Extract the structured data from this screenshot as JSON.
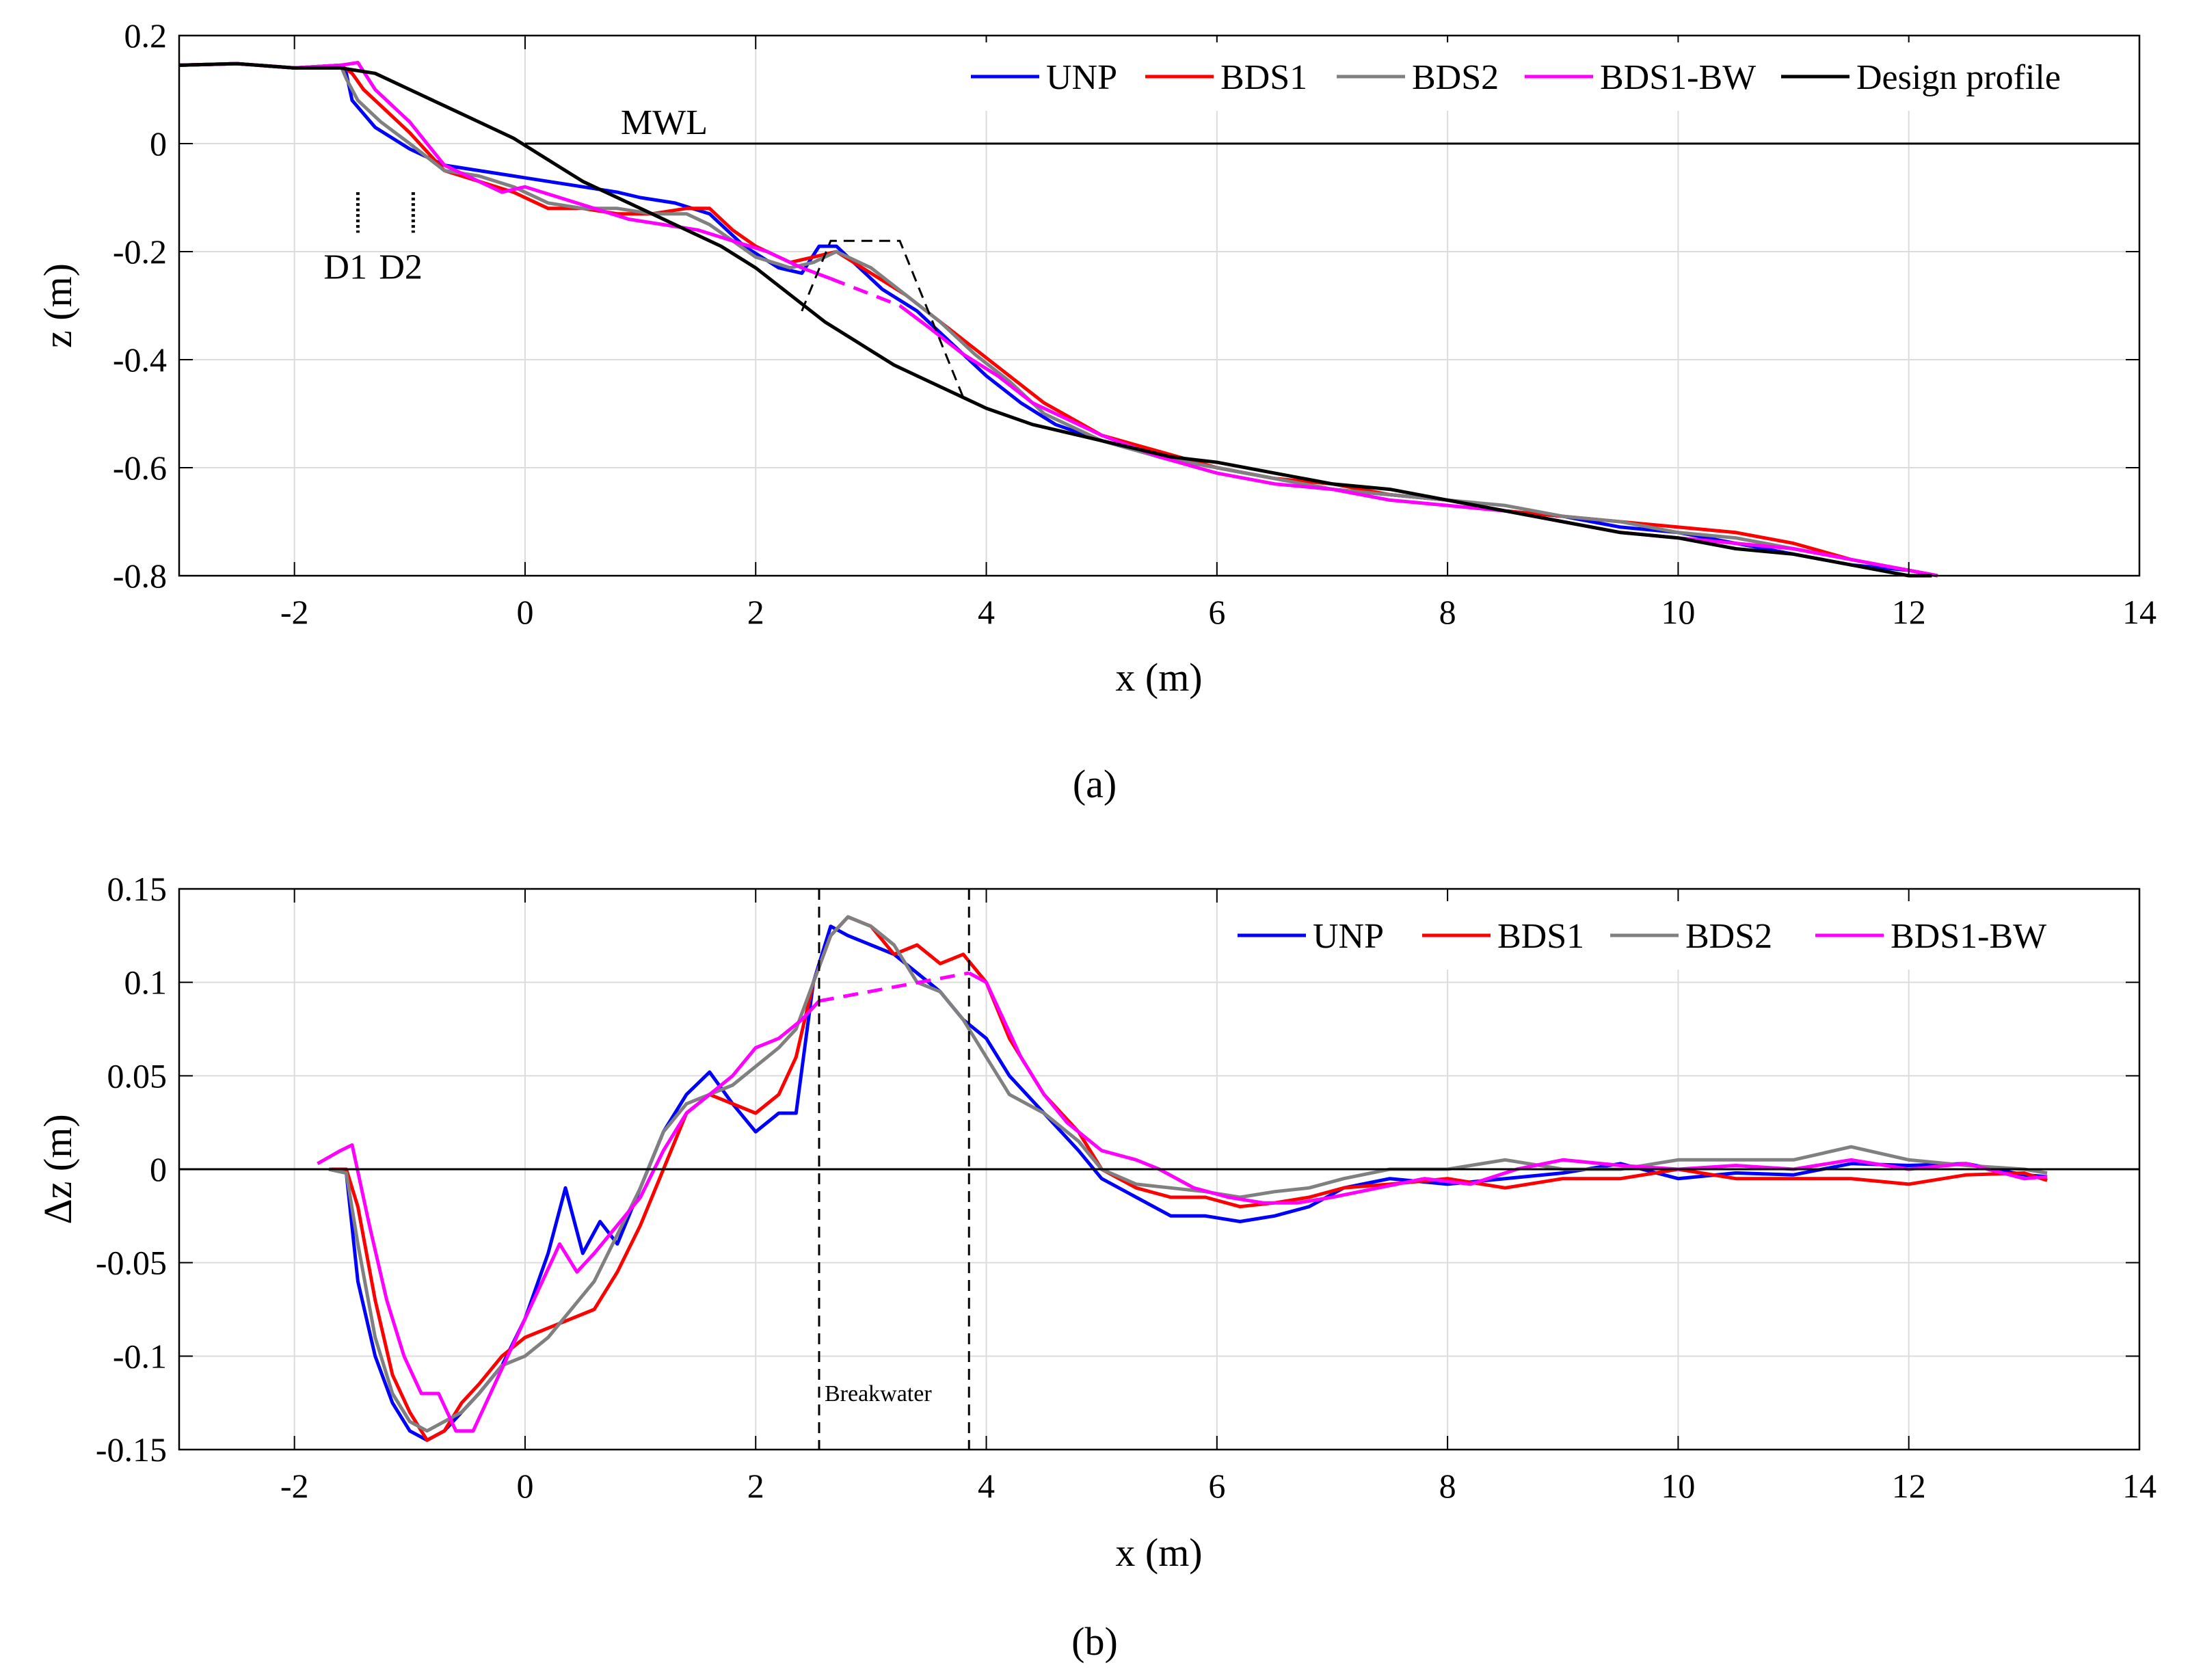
{
  "chart_data": [
    {
      "type": "line",
      "panel": "a",
      "caption": "(a)",
      "xlabel": "x (m)",
      "ylabel": "z (m)",
      "xlim": [
        -3,
        14
      ],
      "ylim": [
        -0.8,
        0.2
      ],
      "xticks": [
        -2,
        0,
        2,
        4,
        6,
        8,
        10,
        12,
        14
      ],
      "yticks": [
        0.2,
        0,
        -0.2,
        -0.4,
        -0.6,
        -0.8
      ],
      "xtick_labels": [
        "-2",
        "0",
        "2",
        "4",
        "6",
        "8",
        "10",
        "12",
        "14"
      ],
      "ytick_labels": [
        "0.2",
        "0",
        "-0.2",
        "-0.4",
        "-0.6",
        "-0.8"
      ],
      "grid": true,
      "legend_position": "top-right",
      "annotations": {
        "mwl": "MWL",
        "d1": "D1",
        "d2": "D2"
      },
      "mwl_level": 0,
      "gauges": [
        {
          "name": "D1",
          "x": -1.45
        },
        {
          "name": "D2",
          "x": -0.97
        }
      ],
      "breakwater_outline": {
        "x": [
          2.4,
          2.65,
          3.25,
          3.8
        ],
        "y": [
          -0.31,
          -0.18,
          -0.18,
          -0.47
        ]
      },
      "series": [
        {
          "name": "UNP",
          "color": "#0000ff",
          "x": [
            -3,
            -2.5,
            -2,
            -1.6,
            -1.55,
            -1.5,
            -1.3,
            -1.0,
            -0.7,
            -0.4,
            -0.1,
            0.2,
            0.5,
            0.8,
            1.0,
            1.3,
            1.6,
            1.9,
            2.2,
            2.4,
            2.55,
            2.7,
            2.9,
            3.1,
            3.4,
            3.7,
            4.0,
            4.3,
            4.6,
            5.0,
            5.5,
            6.0,
            6.5,
            7.0,
            7.5,
            8.0,
            8.5,
            9.0,
            9.5,
            10.0,
            10.5,
            11.0,
            11.5,
            12.0,
            12.25
          ],
          "y": [
            0.145,
            0.148,
            0.14,
            0.145,
            0.13,
            0.08,
            0.03,
            -0.01,
            -0.04,
            -0.05,
            -0.06,
            -0.07,
            -0.08,
            -0.09,
            -0.1,
            -0.11,
            -0.13,
            -0.19,
            -0.23,
            -0.24,
            -0.19,
            -0.19,
            -0.23,
            -0.27,
            -0.31,
            -0.37,
            -0.43,
            -0.48,
            -0.52,
            -0.55,
            -0.58,
            -0.6,
            -0.62,
            -0.64,
            -0.65,
            -0.66,
            -0.68,
            -0.69,
            -0.71,
            -0.72,
            -0.74,
            -0.76,
            -0.78,
            -0.79,
            -0.8
          ]
        },
        {
          "name": "BDS1",
          "color": "#ff0000",
          "x": [
            -3,
            -2.5,
            -2,
            -1.6,
            -1.5,
            -1.4,
            -1.2,
            -1.0,
            -0.7,
            -0.4,
            -0.1,
            0.2,
            0.5,
            0.8,
            1.1,
            1.4,
            1.6,
            1.8,
            2.0,
            2.3,
            2.5,
            2.7,
            3.0,
            3.3,
            3.6,
            3.9,
            4.2,
            4.5,
            5.0,
            5.5,
            6.0,
            6.5,
            7.0,
            7.5,
            8.0,
            8.5,
            9.0,
            9.5,
            10.0,
            10.5,
            11.0,
            11.5,
            12.0,
            12.25
          ],
          "y": [
            0.145,
            0.148,
            0.14,
            0.145,
            0.13,
            0.1,
            0.06,
            0.02,
            -0.05,
            -0.07,
            -0.09,
            -0.12,
            -0.12,
            -0.13,
            -0.13,
            -0.12,
            -0.12,
            -0.16,
            -0.19,
            -0.22,
            -0.21,
            -0.2,
            -0.24,
            -0.28,
            -0.33,
            -0.38,
            -0.43,
            -0.48,
            -0.54,
            -0.57,
            -0.6,
            -0.62,
            -0.63,
            -0.65,
            -0.66,
            -0.68,
            -0.69,
            -0.7,
            -0.71,
            -0.72,
            -0.74,
            -0.77,
            -0.79,
            -0.8
          ]
        },
        {
          "name": "BDS2",
          "color": "#808080",
          "x": [
            -3,
            -2.5,
            -2,
            -1.6,
            -1.55,
            -1.45,
            -1.25,
            -1.0,
            -0.7,
            -0.4,
            -0.1,
            0.2,
            0.5,
            0.8,
            1.1,
            1.4,
            1.6,
            1.8,
            2.0,
            2.3,
            2.5,
            2.7,
            3.0,
            3.3,
            3.6,
            3.9,
            4.2,
            4.5,
            5.0,
            5.5,
            6.0,
            6.5,
            7.0,
            7.5,
            8.0,
            8.5,
            9.0,
            9.5,
            10.0,
            10.5,
            11.0,
            11.5,
            12.0,
            12.25
          ],
          "y": [
            0.145,
            0.148,
            0.14,
            0.145,
            0.12,
            0.08,
            0.04,
            0.0,
            -0.05,
            -0.06,
            -0.08,
            -0.11,
            -0.12,
            -0.12,
            -0.13,
            -0.13,
            -0.15,
            -0.18,
            -0.21,
            -0.23,
            -0.22,
            -0.2,
            -0.23,
            -0.28,
            -0.33,
            -0.39,
            -0.44,
            -0.5,
            -0.55,
            -0.58,
            -0.6,
            -0.62,
            -0.64,
            -0.65,
            -0.66,
            -0.67,
            -0.69,
            -0.7,
            -0.72,
            -0.73,
            -0.75,
            -0.77,
            -0.79,
            -0.8
          ]
        },
        {
          "name": "BDS1-BW",
          "color": "#ff00ff",
          "x": [
            -3,
            -2.5,
            -2,
            -1.6,
            -1.45,
            -1.3,
            -1.0,
            -0.7,
            -0.4,
            -0.2,
            0.0,
            0.3,
            0.6,
            0.9,
            1.2,
            1.5,
            1.8,
            2.1,
            2.4,
            2.65,
            3.25,
            3.5,
            3.8,
            4.1,
            4.4,
            4.7,
            5.0,
            5.5,
            6.0,
            6.5,
            7.0,
            7.5,
            8.0,
            8.5,
            9.0,
            9.5,
            10.0,
            10.5,
            11.0,
            11.5,
            12.0,
            12.25
          ],
          "y": [
            0.145,
            0.148,
            0.14,
            0.145,
            0.15,
            0.1,
            0.04,
            -0.04,
            -0.07,
            -0.09,
            -0.08,
            -0.1,
            -0.12,
            -0.14,
            -0.15,
            -0.16,
            -0.18,
            -0.2,
            -0.23,
            -0.25,
            -0.3,
            -0.34,
            -0.39,
            -0.43,
            -0.48,
            -0.51,
            -0.54,
            -0.58,
            -0.61,
            -0.63,
            -0.64,
            -0.66,
            -0.67,
            -0.68,
            -0.7,
            -0.72,
            -0.73,
            -0.74,
            -0.75,
            -0.77,
            -0.79,
            -0.8
          ],
          "dashed_from_x": 2.65,
          "dashed_to_x": 3.25
        },
        {
          "name": "Design profile",
          "color": "#000000",
          "x": [
            -3,
            -2.5,
            -2.0,
            -1.6,
            -1.3,
            -1.0,
            -0.7,
            -0.4,
            -0.1,
            0.2,
            0.5,
            0.8,
            1.1,
            1.4,
            1.7,
            2.0,
            2.3,
            2.6,
            2.9,
            3.2,
            3.5,
            3.8,
            4.0,
            4.4,
            4.8,
            5.2,
            5.6,
            6.0,
            6.5,
            7.0,
            7.5,
            8.0,
            8.5,
            9.0,
            9.5,
            10.0,
            10.5,
            11.0,
            11.5,
            12.0,
            12.2
          ],
          "y": [
            0.145,
            0.148,
            0.14,
            0.14,
            0.13,
            0.1,
            0.07,
            0.04,
            0.01,
            -0.03,
            -0.07,
            -0.1,
            -0.13,
            -0.16,
            -0.19,
            -0.23,
            -0.28,
            -0.33,
            -0.37,
            -0.41,
            -0.44,
            -0.47,
            -0.49,
            -0.52,
            -0.54,
            -0.56,
            -0.58,
            -0.59,
            -0.61,
            -0.63,
            -0.64,
            -0.66,
            -0.68,
            -0.7,
            -0.72,
            -0.73,
            -0.75,
            -0.76,
            -0.78,
            -0.8,
            -0.8
          ]
        }
      ]
    },
    {
      "type": "line",
      "panel": "b",
      "caption": "(b)",
      "xlabel": "x (m)",
      "ylabel": "Δz (m)",
      "xlim": [
        -3,
        14
      ],
      "ylim": [
        -0.15,
        0.15
      ],
      "xticks": [
        -2,
        0,
        2,
        4,
        6,
        8,
        10,
        12,
        14
      ],
      "yticks": [
        0.15,
        0.1,
        0.05,
        0,
        -0.05,
        -0.1,
        -0.15
      ],
      "xtick_labels": [
        "-2",
        "0",
        "2",
        "4",
        "6",
        "8",
        "10",
        "12",
        "14"
      ],
      "ytick_labels": [
        "0.15",
        "0.1",
        "0.05",
        "0",
        "-0.05",
        "-0.1",
        "-0.15"
      ],
      "grid": true,
      "legend_position": "top-right",
      "annotations": {
        "breakwater": "Breakwater"
      },
      "breakwater_bounds": [
        2.55,
        3.85
      ],
      "series": [
        {
          "name": "UNP",
          "color": "#0000ff",
          "x": [
            -1.7,
            -1.55,
            -1.45,
            -1.3,
            -1.15,
            -1.0,
            -0.85,
            -0.7,
            -0.55,
            -0.4,
            -0.2,
            0.0,
            0.2,
            0.35,
            0.5,
            0.65,
            0.8,
            1.0,
            1.2,
            1.4,
            1.6,
            1.8,
            2.0,
            2.2,
            2.35,
            2.5,
            2.65,
            2.8,
            3.0,
            3.2,
            3.4,
            3.6,
            3.8,
            4.0,
            4.2,
            4.5,
            4.8,
            5.0,
            5.3,
            5.6,
            5.9,
            6.2,
            6.5,
            6.8,
            7.1,
            7.5,
            8.0,
            8.5,
            9.0,
            9.5,
            10.0,
            10.5,
            11.0,
            11.5,
            12.0,
            12.5,
            13.0,
            13.2
          ],
          "y": [
            0.0,
            -0.002,
            -0.06,
            -0.1,
            -0.125,
            -0.14,
            -0.145,
            -0.14,
            -0.13,
            -0.12,
            -0.105,
            -0.08,
            -0.045,
            -0.01,
            -0.045,
            -0.028,
            -0.04,
            -0.01,
            0.02,
            0.04,
            0.052,
            0.035,
            0.02,
            0.03,
            0.03,
            0.1,
            0.13,
            0.125,
            0.12,
            0.115,
            0.105,
            0.095,
            0.08,
            0.07,
            0.05,
            0.03,
            0.01,
            -0.005,
            -0.015,
            -0.025,
            -0.025,
            -0.028,
            -0.025,
            -0.02,
            -0.01,
            -0.005,
            -0.008,
            -0.005,
            -0.002,
            0.003,
            -0.005,
            -0.002,
            -0.003,
            0.003,
            0.002,
            0.003,
            -0.003,
            -0.004
          ]
        },
        {
          "name": "BDS1",
          "color": "#ff0000",
          "x": [
            -1.7,
            -1.55,
            -1.45,
            -1.3,
            -1.15,
            -1.0,
            -0.85,
            -0.7,
            -0.55,
            -0.4,
            -0.2,
            0.0,
            0.2,
            0.4,
            0.6,
            0.8,
            1.0,
            1.2,
            1.4,
            1.6,
            1.8,
            2.0,
            2.2,
            2.35,
            2.5,
            2.65,
            2.8,
            3.0,
            3.2,
            3.4,
            3.6,
            3.8,
            4.0,
            4.2,
            4.5,
            4.8,
            5.0,
            5.3,
            5.6,
            5.9,
            6.2,
            6.5,
            6.8,
            7.1,
            7.5,
            8.0,
            8.5,
            9.0,
            9.5,
            10.0,
            10.5,
            11.0,
            11.5,
            12.0,
            12.5,
            13.0,
            13.2
          ],
          "y": [
            0.0,
            0.0,
            -0.02,
            -0.07,
            -0.11,
            -0.13,
            -0.145,
            -0.14,
            -0.125,
            -0.115,
            -0.1,
            -0.09,
            -0.085,
            -0.08,
            -0.075,
            -0.055,
            -0.03,
            0.0,
            0.03,
            0.04,
            0.035,
            0.03,
            0.04,
            0.06,
            0.1,
            0.125,
            0.135,
            0.13,
            0.115,
            0.12,
            0.11,
            0.115,
            0.1,
            0.07,
            0.04,
            0.02,
            0.0,
            -0.01,
            -0.015,
            -0.015,
            -0.02,
            -0.018,
            -0.015,
            -0.01,
            -0.008,
            -0.005,
            -0.01,
            -0.005,
            -0.005,
            0.0,
            -0.005,
            -0.005,
            -0.005,
            -0.008,
            -0.003,
            -0.002,
            -0.006
          ]
        },
        {
          "name": "BDS2",
          "color": "#808080",
          "x": [
            -1.7,
            -1.55,
            -1.45,
            -1.3,
            -1.15,
            -1.0,
            -0.85,
            -0.7,
            -0.55,
            -0.4,
            -0.2,
            0.0,
            0.2,
            0.4,
            0.6,
            0.8,
            1.0,
            1.2,
            1.4,
            1.6,
            1.8,
            2.0,
            2.2,
            2.35,
            2.5,
            2.65,
            2.8,
            3.0,
            3.2,
            3.4,
            3.6,
            3.8,
            4.0,
            4.2,
            4.5,
            4.8,
            5.0,
            5.3,
            5.6,
            5.9,
            6.2,
            6.5,
            6.8,
            7.1,
            7.5,
            8.0,
            8.5,
            9.0,
            9.5,
            10.0,
            10.5,
            11.0,
            11.5,
            12.0,
            12.5,
            13.0,
            13.2
          ],
          "y": [
            0.0,
            -0.002,
            -0.04,
            -0.09,
            -0.12,
            -0.135,
            -0.14,
            -0.135,
            -0.13,
            -0.12,
            -0.105,
            -0.1,
            -0.09,
            -0.075,
            -0.06,
            -0.035,
            -0.01,
            0.02,
            0.035,
            0.04,
            0.045,
            0.055,
            0.065,
            0.075,
            0.1,
            0.125,
            0.135,
            0.13,
            0.12,
            0.1,
            0.095,
            0.08,
            0.06,
            0.04,
            0.03,
            0.015,
            0.0,
            -0.008,
            -0.01,
            -0.012,
            -0.015,
            -0.012,
            -0.01,
            -0.005,
            0.0,
            0.0,
            0.005,
            0.0,
            0.0,
            0.005,
            0.005,
            0.005,
            0.012,
            0.005,
            0.002,
            0.0,
            -0.002
          ]
        },
        {
          "name": "BDS1-BW",
          "color": "#ff00ff",
          "x": [
            -1.8,
            -1.6,
            -1.5,
            -1.35,
            -1.2,
            -1.05,
            -0.9,
            -0.75,
            -0.6,
            -0.45,
            -0.3,
            -0.15,
            0.0,
            0.15,
            0.3,
            0.45,
            0.6,
            0.8,
            1.0,
            1.2,
            1.4,
            1.6,
            1.8,
            2.0,
            2.2,
            2.4,
            2.55,
            3.85,
            4.0,
            4.15,
            4.3,
            4.5,
            4.7,
            5.0,
            5.3,
            5.5,
            5.8,
            6.1,
            6.4,
            6.7,
            7.0,
            7.4,
            7.8,
            8.2,
            8.6,
            9.0,
            9.5,
            10.0,
            10.5,
            11.0,
            11.5,
            12.0,
            12.5,
            13.0,
            13.2
          ],
          "y": [
            0.003,
            0.01,
            0.013,
            -0.03,
            -0.07,
            -0.1,
            -0.12,
            -0.12,
            -0.14,
            -0.14,
            -0.12,
            -0.1,
            -0.08,
            -0.06,
            -0.04,
            -0.055,
            -0.045,
            -0.03,
            -0.015,
            0.01,
            0.03,
            0.04,
            0.05,
            0.065,
            0.07,
            0.08,
            0.09,
            0.105,
            0.1,
            0.08,
            0.06,
            0.04,
            0.025,
            0.01,
            0.005,
            0.0,
            -0.01,
            -0.015,
            -0.018,
            -0.018,
            -0.015,
            -0.01,
            -0.005,
            -0.008,
            0.0,
            0.005,
            0.002,
            0.0,
            0.002,
            0.0,
            0.005,
            0.0,
            0.003,
            -0.005,
            -0.004
          ],
          "dashed_from_x": 2.55,
          "dashed_to_x": 3.85
        }
      ]
    }
  ]
}
